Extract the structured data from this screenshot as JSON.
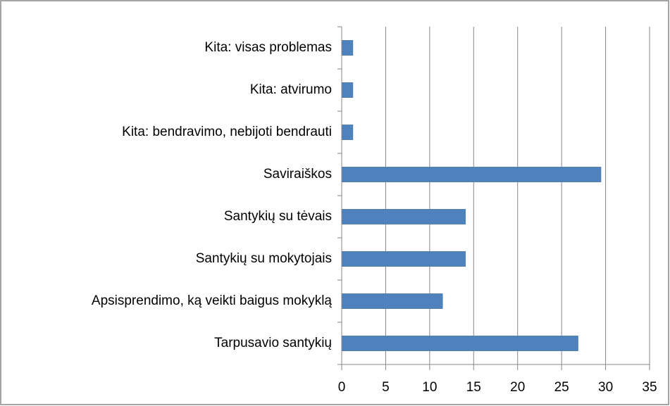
{
  "chart_data": {
    "type": "barh",
    "categories": [
      "Kita: visas problemas",
      "Kita: atvirumo",
      "Kita: bendravimo, nebijoti bendrauti",
      "Saviraiškos",
      "Santykių su tėvais",
      "Santykių su mokytojais",
      "Apsisprendimo, ką veikti baigus mokyklą",
      "Tarpusavio santykių"
    ],
    "values": [
      1.3,
      1.3,
      1.3,
      29.5,
      14.1,
      14.1,
      11.5,
      26.9
    ],
    "color": "#4f81bd",
    "xlim": [
      0,
      35
    ],
    "xticks": [
      0,
      5,
      10,
      15,
      20,
      25,
      30,
      35
    ],
    "grid": true
  }
}
